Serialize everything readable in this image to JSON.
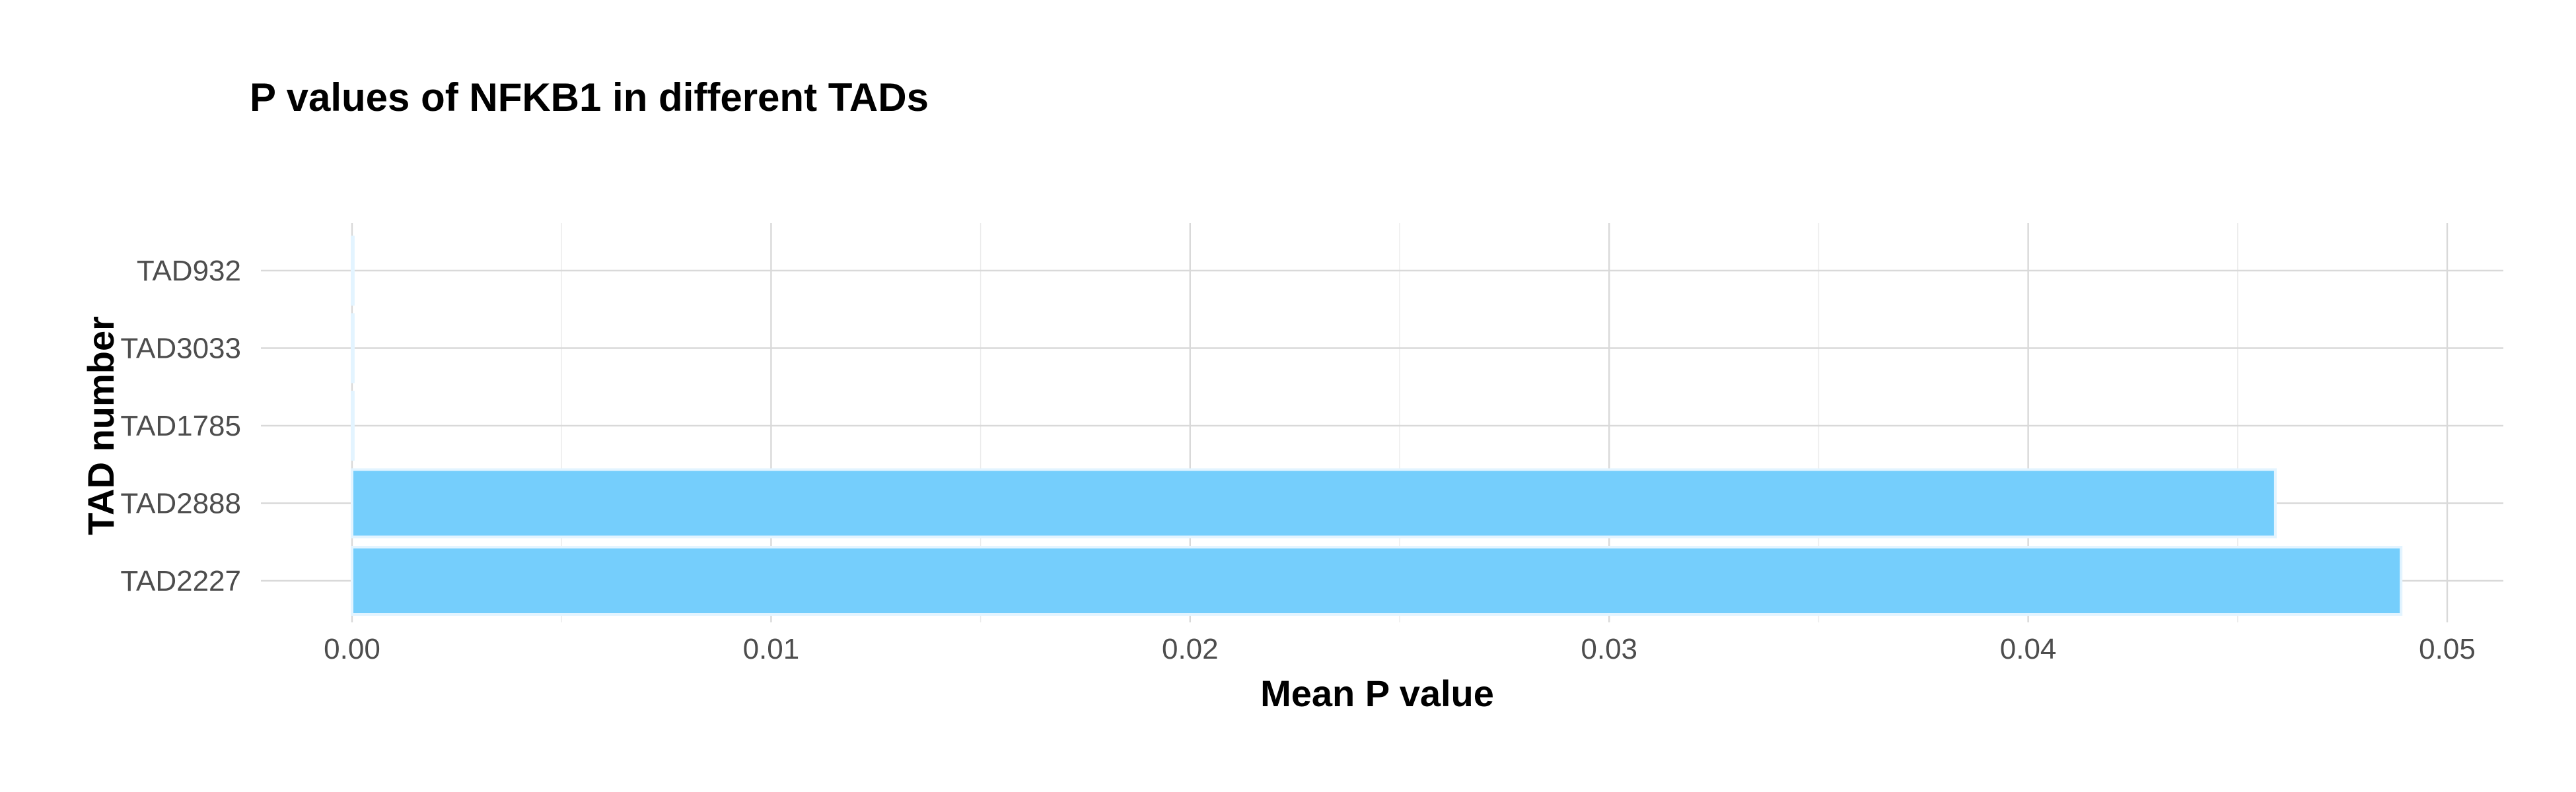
{
  "chart_data": {
    "type": "bar",
    "orientation": "horizontal",
    "title": "P values of NFKB1 in different TADs",
    "xlabel": "Mean P value",
    "ylabel": "TAD number",
    "categories": [
      "TAD2227",
      "TAD2888",
      "TAD1785",
      "TAD3033",
      "TAD932"
    ],
    "values": [
      0.0489,
      0.0459,
      3e-05,
      3e-05,
      3e-05
    ],
    "xlim": [
      0,
      0.05
    ],
    "x_ticks": [
      0,
      0.01,
      0.02,
      0.03,
      0.04,
      0.05
    ],
    "x_tick_labels": [
      "0.00",
      "0.01",
      "0.02",
      "0.03",
      "0.04",
      "0.05"
    ],
    "bar_color": "#75CEFC",
    "grid": true,
    "legend": "none"
  }
}
